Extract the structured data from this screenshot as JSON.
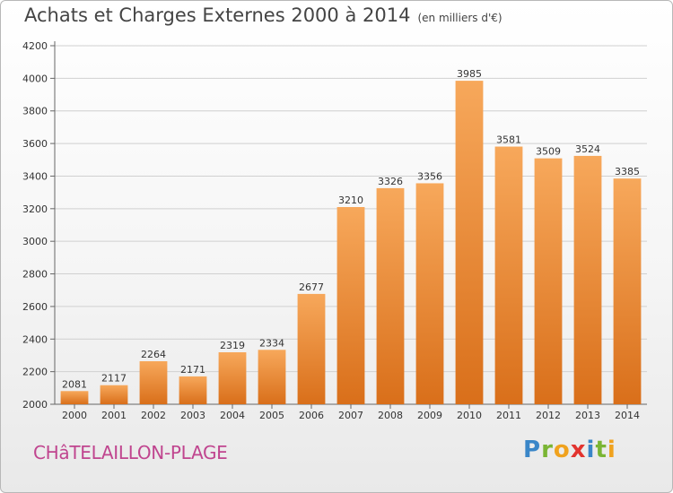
{
  "title": "Achats et Charges Externes 2000 à 2014",
  "subtitle": "(en milliers d'€)",
  "commune": "CHâTELAILLON-PLAGE",
  "brand": "Proxiti",
  "colors": {
    "bar_top": "#f7a85b",
    "bar_bottom": "#d96f1a",
    "grid": "#d0d0d0"
  },
  "chart_data": {
    "type": "bar",
    "categories": [
      "2000",
      "2001",
      "2002",
      "2003",
      "2004",
      "2005",
      "2006",
      "2007",
      "2008",
      "2009",
      "2010",
      "2011",
      "2012",
      "2013",
      "2014"
    ],
    "values": [
      2081,
      2117,
      2264,
      2171,
      2319,
      2334,
      2677,
      3210,
      3326,
      3356,
      3985,
      3581,
      3509,
      3524,
      3385
    ],
    "ylim": [
      2000,
      4200
    ],
    "yticks": [
      2000,
      2200,
      2400,
      2600,
      2800,
      3000,
      3200,
      3400,
      3600,
      3800,
      4000,
      4200
    ],
    "grid": true,
    "data_labels": true,
    "xlabel": "",
    "ylabel": ""
  }
}
